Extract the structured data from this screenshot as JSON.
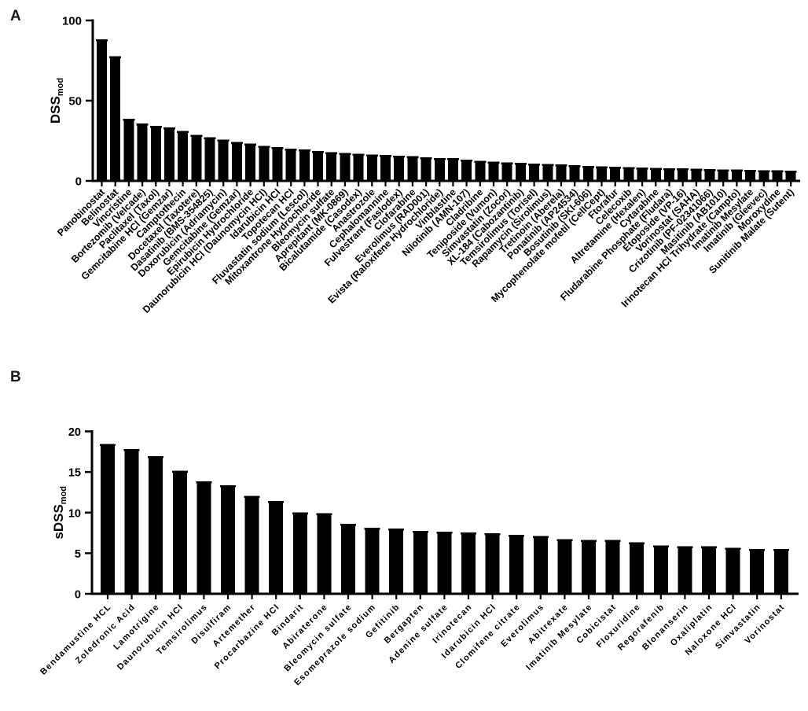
{
  "figure": {
    "background": "#ffffff",
    "bar_color": "#000000",
    "axis_color": "#000000",
    "text_color": "#000000"
  },
  "chart_data": [
    {
      "type": "bar",
      "panel": "A",
      "title": "",
      "xlabel": "",
      "ylabel_base": "DSS",
      "ylabel_sub": "mod",
      "ylim": [
        0,
        100
      ],
      "yticks": [
        0,
        50,
        100
      ],
      "layout_hints": {
        "grid": false,
        "legend": false,
        "bar_orientation": "vertical",
        "x_labels_rotated_deg": 45,
        "error_bar_caps": true
      },
      "categories": [
        "Panobinostat",
        "Belinostat",
        "Vincristine",
        "Bortezomib (Velcade)",
        "Paclitaxel (Taxol)",
        "Gemcitabine HCl (Gemzar)",
        "Camptothecin",
        "Docetaxel (Taxotere)",
        "Dasatinib (BMS-354825)",
        "Doxorubicin (Adriamycin)",
        "Gemcitabine (Gemzar)",
        "Epirubicin Hydrochloride",
        "Daunorubicin HCl (Daunomycin HCl)",
        "Idarubicin HCl",
        "Topotecan HCl",
        "Fluvastatin sodium (Lescol)",
        "Mitoxantrone Hydrochloride",
        "Bleomycin sulfate",
        "Aprepitant (MK-0869)",
        "Bicalutamide (Casodex)",
        "Anastrozole",
        "Cephalomannine",
        "Fulvestrant (Faslodex)",
        "Clofarabine",
        "Everolimus (RAD001)",
        "Evista (Raloxifene Hydrochloride)",
        "Vinblastine",
        "Nilotinib (AMN-107)",
        "Cladribine",
        "Teniposide (Vumon)",
        "Simvastatin (Zocor)",
        "XL-184 (Cabozantinib)",
        "Temsirolimus (Torisel)",
        "Rapamycin (Sirolimus)",
        "Tretinoin (Aberela)",
        "Ponatinib (AP24534)",
        "Bosutinib (SKI-606)",
        "Mycophenolate mofetil (CellCept)",
        "Ftorafur",
        "Celecoxib",
        "Altretamine (Hexalen)",
        "Cytarabine",
        "Fludarabine Phosphate (Fludara)",
        "Etoposide (VP-16)",
        "Vorinostat (SAHA)",
        "Crizotinib (PF-02341066)",
        "Masitinib (AB1010)",
        "Irinotecan HCl Trihydrate (Campto)",
        "Imatinib Mesylate",
        "Imatinib (Gleevec)",
        "Moroxydine",
        "Sunitinib Malate (Sutent)"
      ],
      "values": [
        87,
        76.5,
        37.5,
        34.5,
        33,
        32,
        30,
        27.5,
        26,
        24.5,
        23,
        22,
        20.5,
        19.8,
        18.8,
        18.4,
        17.5,
        16.7,
        16.1,
        15.8,
        15.3,
        14.9,
        14.5,
        14.1,
        13.6,
        13.1,
        12.9,
        11.9,
        11.2,
        10.9,
        10.4,
        10.1,
        9.6,
        9.3,
        9.0,
        8.5,
        8.1,
        7.8,
        7.6,
        7.3,
        7.1,
        6.9,
        6.7,
        6.5,
        6.3,
        6.1,
        6.0,
        5.8,
        5.6,
        5.5,
        5.3,
        5.1
      ]
    },
    {
      "type": "bar",
      "panel": "B",
      "title": "",
      "xlabel": "",
      "ylabel_base": "sDSS",
      "ylabel_sub": "mod",
      "ylim": [
        0,
        20
      ],
      "yticks": [
        0,
        5,
        10,
        15,
        20
      ],
      "layout_hints": {
        "grid": false,
        "legend": false,
        "bar_orientation": "vertical",
        "x_labels_rotated_deg": 45,
        "error_bar_caps": true
      },
      "categories": [
        "Bendamustine HCL",
        "Zoledronic Acid",
        "Lamotrigine",
        "Daunorubicin HCl",
        "Temsirolimus",
        "Disulfiram",
        "Artemether",
        "Procarbazine HCl",
        "Bindarit",
        "Abiraterone",
        "Bleomycin sulfate",
        "Esomeprazole sodium",
        "Gefitinib",
        "Bergapten",
        "Adenine sulfate",
        "Irinotecan",
        "Idarubicin HCl",
        "Clomifene citrate",
        "Everolimus",
        "Abitrexate",
        "Imatinib Mesylate",
        "Cobicistat",
        "Floxuridine",
        "Regorafenib",
        "Blonanserin",
        "Oxaliplatin",
        "Naloxone HCl",
        "Simvastatin",
        "Vorinostat"
      ],
      "values": [
        18.2,
        17.6,
        16.7,
        14.9,
        13.6,
        13.1,
        11.8,
        11.2,
        9.8,
        9.7,
        8.4,
        7.9,
        7.8,
        7.5,
        7.4,
        7.3,
        7.2,
        7.0,
        6.9,
        6.5,
        6.4,
        6.4,
        6.1,
        5.7,
        5.6,
        5.6,
        5.4,
        5.3,
        5.3
      ]
    }
  ]
}
